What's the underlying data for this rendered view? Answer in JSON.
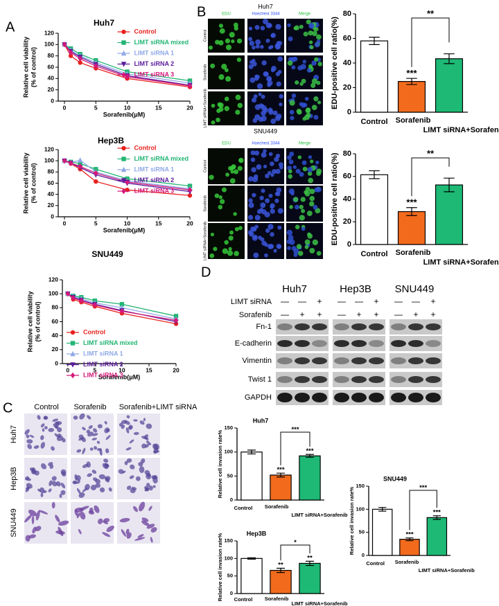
{
  "panels": [
    "A",
    "B",
    "C",
    "D"
  ],
  "chart_data": [
    {
      "type": "line",
      "title": "Huh7",
      "x_label": "Sorafenib(μM)",
      "y_label": [
        "Relative cell viability",
        "(% of control)"
      ],
      "x": [
        0,
        1,
        2.5,
        5,
        10,
        20
      ],
      "xlim": [
        -1,
        20
      ],
      "xticks": [
        0,
        5,
        10,
        15,
        20
      ],
      "ylim": [
        0,
        120
      ],
      "yticks": [
        0,
        20,
        40,
        60,
        80,
        100,
        120
      ],
      "legend_position": "upper right",
      "series": [
        {
          "name": "Control",
          "color": "#e8211e",
          "marker": "circle",
          "values": [
            100,
            80,
            68,
            58,
            40,
            25
          ]
        },
        {
          "name": "LIMT siRNA mixed",
          "color": "#22b573",
          "marker": "square",
          "values": [
            100,
            93,
            83,
            72,
            52,
            36
          ]
        },
        {
          "name": "LIMT siRNA 1",
          "color": "#8fa8e8",
          "marker": "triangle-up",
          "values": [
            100,
            90,
            80,
            68,
            48,
            32
          ]
        },
        {
          "name": "LIMT siRNA 2",
          "color": "#5a1a9a",
          "marker": "triangle-down",
          "values": [
            100,
            88,
            78,
            65,
            45,
            28
          ]
        },
        {
          "name": "LIMT siRNA 3",
          "color": "#d4187a",
          "marker": "diamond",
          "values": [
            100,
            86,
            75,
            62,
            43,
            27
          ]
        }
      ]
    },
    {
      "type": "line",
      "title": "Hep3B",
      "x_label": "Sorafenib(μM)",
      "y_label": [
        "Relative cell viability",
        "(% of control)"
      ],
      "x": [
        0,
        1,
        2.5,
        5,
        10,
        20
      ],
      "xlim": [
        -1,
        20
      ],
      "xticks": [
        0,
        5,
        10,
        15,
        20
      ],
      "ylim": [
        0,
        120
      ],
      "yticks": [
        0,
        20,
        40,
        60,
        80,
        100,
        120
      ],
      "legend_position": "upper right",
      "series": [
        {
          "name": "Control",
          "color": "#e8211e",
          "marker": "circle",
          "values": [
            100,
            95,
            85,
            63,
            48,
            38
          ]
        },
        {
          "name": "LIMT siRNA mixed",
          "color": "#22b573",
          "marker": "square",
          "values": [
            100,
            98,
            95,
            85,
            68,
            55
          ]
        },
        {
          "name": "LIMT siRNA 1",
          "color": "#8fa8e8",
          "marker": "triangle-up",
          "values": [
            100,
            97,
            101,
            80,
            64,
            50
          ]
        },
        {
          "name": "LIMT siRNA 2",
          "color": "#5a1a9a",
          "marker": "triangle-down",
          "values": [
            100,
            96,
            88,
            75,
            60,
            45
          ]
        },
        {
          "name": "LIMT siRNA 3",
          "color": "#d4187a",
          "marker": "diamond",
          "values": [
            100,
            96,
            90,
            78,
            62,
            48
          ]
        }
      ]
    },
    {
      "type": "line",
      "title": "SNU449",
      "x_label": "Sorafenib(μM)",
      "y_label": [
        "Relative cell viability",
        "(% of control)"
      ],
      "x": [
        0,
        1,
        2.5,
        5,
        10,
        20
      ],
      "xlim": [
        -1,
        20
      ],
      "xticks": [
        0,
        5,
        10,
        15,
        20
      ],
      "ylim": [
        0,
        120
      ],
      "yticks": [
        0,
        20,
        40,
        60,
        80,
        100,
        120
      ],
      "legend_position": "lower left",
      "series": [
        {
          "name": "Control",
          "color": "#e8211e",
          "marker": "circle",
          "values": [
            100,
            92,
            88,
            82,
            72,
            57
          ]
        },
        {
          "name": "LIMT siRNA mixed",
          "color": "#22b573",
          "marker": "square",
          "values": [
            100,
            97,
            95,
            90,
            85,
            68
          ]
        },
        {
          "name": "LIMT siRNA 1",
          "color": "#8fa8e8",
          "marker": "triangle-up",
          "values": [
            100,
            96,
            93,
            87,
            80,
            64
          ]
        },
        {
          "name": "LIMT siRNA 2",
          "color": "#5a1a9a",
          "marker": "triangle-down",
          "values": [
            100,
            95,
            91,
            85,
            76,
            60
          ]
        },
        {
          "name": "LIMT siRNA 3",
          "color": "#d4187a",
          "marker": "diamond",
          "values": [
            100,
            94,
            90,
            84,
            75,
            62
          ]
        }
      ]
    },
    {
      "type": "bar",
      "y_label": "EDU-positive cell ratio(%)",
      "categories": [
        "Control",
        "Sorafenib",
        "LIMT siRNA+Sorafenib"
      ],
      "values": [
        58,
        25,
        43.5
      ],
      "errors": [
        3,
        2.5,
        4
      ],
      "colors": [
        "#ffffff",
        "#f26b1d",
        "#1db975"
      ],
      "ylim": [
        0,
        80
      ],
      "yticks": [
        0,
        20,
        40,
        60,
        80
      ],
      "significance": [
        null,
        "***",
        null
      ],
      "bracket_label": "**"
    },
    {
      "type": "bar",
      "y_label": "EDU-positive cell ratio(%)",
      "categories": [
        "Control",
        "Sorafenib",
        "LIMT siRNA+Sorafenib"
      ],
      "values": [
        61.5,
        29,
        52.5
      ],
      "errors": [
        3.5,
        3.5,
        6
      ],
      "colors": [
        "#ffffff",
        "#f26b1d",
        "#1db975"
      ],
      "ylim": [
        0,
        80
      ],
      "yticks": [
        0,
        20,
        40,
        60,
        80
      ],
      "significance": [
        null,
        "***",
        null
      ],
      "bracket_label": "**"
    },
    {
      "type": "bar",
      "title": "Huh7",
      "y_label": "Relative cell invasion rate%",
      "categories": [
        "Control",
        "Sorafenib",
        "LIMT siRNA+Sorafenib"
      ],
      "values": [
        100,
        52,
        92
      ],
      "errors": [
        4,
        4,
        3
      ],
      "colors": [
        "#ffffff",
        "#f26b1d",
        "#1db975"
      ],
      "ylim": [
        0,
        150
      ],
      "yticks": [
        0,
        50,
        100,
        150
      ],
      "significance": [
        null,
        "***",
        "***"
      ],
      "bracket_label": "***"
    },
    {
      "type": "bar",
      "title": "Hep3B",
      "y_label": "Relative cell invasion rate%",
      "categories": [
        "Control",
        "Sorafenib",
        "LIMT siRNA+Sorafenib"
      ],
      "values": [
        100,
        66,
        86
      ],
      "errors": [
        2,
        6,
        6
      ],
      "colors": [
        "#ffffff",
        "#f26b1d",
        "#1db975"
      ],
      "ylim": [
        0,
        150
      ],
      "yticks": [
        0,
        50,
        100,
        150
      ],
      "significance": [
        null,
        "**",
        "**"
      ],
      "bracket_label": "*"
    },
    {
      "type": "bar",
      "title": "SNU449",
      "y_label": "Relative cell invasion rate%",
      "categories": [
        "Control",
        "Sorafenib",
        "LIMT siRNA+Sorafenib"
      ],
      "values": [
        100,
        35,
        82
      ],
      "errors": [
        4,
        3,
        4
      ],
      "colors": [
        "#ffffff",
        "#f26b1d",
        "#1db975"
      ],
      "ylim": [
        0,
        150
      ],
      "yticks": [
        0,
        50,
        100,
        150
      ],
      "significance": [
        null,
        "***",
        "***"
      ],
      "bracket_label": "***"
    }
  ],
  "edu_images": [
    {
      "title": "Huh7",
      "columns": [
        "EDU",
        "Hoechest 3344",
        "Merge"
      ],
      "rows": [
        "Control",
        "Sorafenib",
        "LIMT siRNA+Sorafenib"
      ]
    },
    {
      "title": "SNU449",
      "columns": [
        "EDU",
        "Hoechest 3344",
        "Merge"
      ],
      "rows": [
        "Control",
        "Sorafenib",
        "LIMT siRNA+Sorafenib"
      ]
    }
  ],
  "invasion_images": {
    "columns": [
      "Control",
      "Sorafenib",
      "Sorafenib+LIMT siRNA"
    ],
    "rows": [
      "Huh7",
      "Hep3B",
      "SNU449"
    ]
  },
  "western_blot": {
    "cell_lines": [
      "Huh7",
      "Hep3B",
      "SNU449"
    ],
    "conditions": [
      {
        "name": "LIMT siRNA",
        "signs": [
          "—",
          "—",
          "+"
        ]
      },
      {
        "name": "Sorafenib",
        "signs": [
          "—",
          "+",
          "+"
        ]
      }
    ],
    "proteins": [
      "Fn-1",
      "E-cadherin",
      "Vimentin",
      "Twist 1",
      "GAPDH"
    ]
  }
}
